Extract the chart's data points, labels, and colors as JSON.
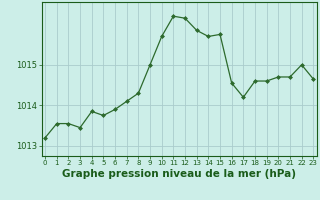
{
  "x": [
    0,
    1,
    2,
    3,
    4,
    5,
    6,
    7,
    8,
    9,
    10,
    11,
    12,
    13,
    14,
    15,
    16,
    17,
    18,
    19,
    20,
    21,
    22,
    23
  ],
  "y": [
    1013.2,
    1013.55,
    1013.55,
    1013.45,
    1013.85,
    1013.75,
    1013.9,
    1014.1,
    1014.3,
    1015.0,
    1015.7,
    1016.2,
    1016.15,
    1015.85,
    1015.7,
    1015.75,
    1014.55,
    1014.2,
    1014.6,
    1014.6,
    1014.7,
    1014.7,
    1015.0,
    1014.65
  ],
  "line_color": "#2d6a2d",
  "marker": "D",
  "marker_size": 2.0,
  "bg_color": "#cceee8",
  "grid_color": "#aacccc",
  "axis_label_color": "#1a5c1a",
  "xlabel": "Graphe pression niveau de la mer (hPa)",
  "xlabel_fontsize": 7.5,
  "tick_color": "#1a5c1a",
  "ylim": [
    1012.75,
    1016.55
  ],
  "yticks": [
    1013,
    1014,
    1015
  ],
  "xtick_fontsize": 5.0,
  "ytick_fontsize": 6.0
}
